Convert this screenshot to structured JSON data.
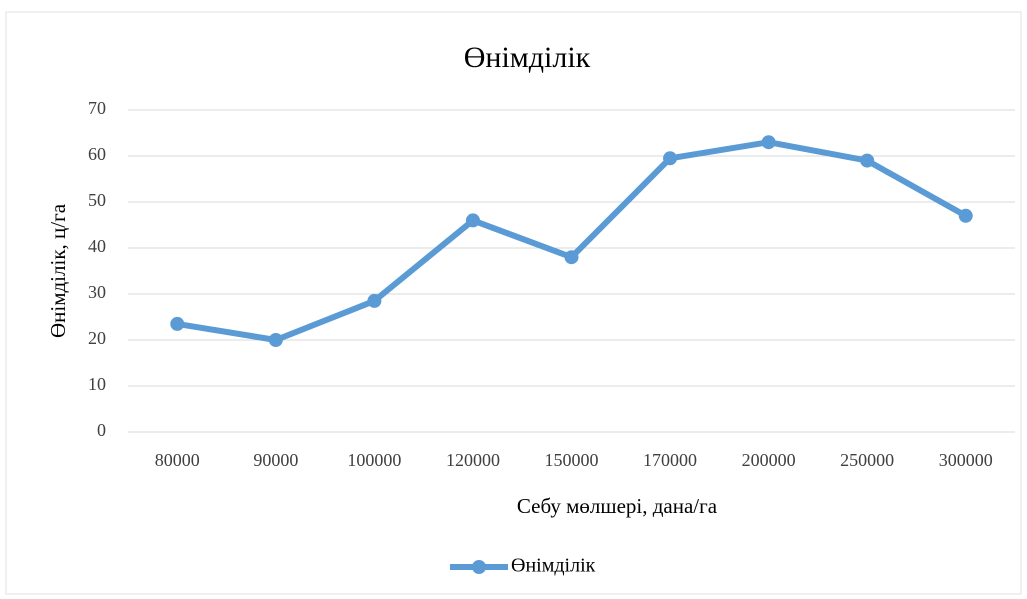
{
  "chart_data": {
    "type": "line",
    "title": "Өнімділік",
    "x_label": "Себу мөлшері,  дана/га",
    "y_label": "Өнімділік, ц/га",
    "categories": [
      "80000",
      "90000",
      "100000",
      "120000",
      "150000",
      "170000",
      "200000",
      "250000",
      "300000"
    ],
    "series": [
      {
        "name": "Өнімділік",
        "color": "#5b9bd5",
        "values": [
          23.5,
          20,
          28.5,
          46,
          38,
          59.5,
          63,
          59,
          47
        ]
      }
    ],
    "ylim": [
      0,
      70
    ],
    "yticks": [
      0,
      10,
      20,
      30,
      40,
      50,
      60,
      70
    ],
    "grid": true,
    "legend": "bottom"
  }
}
